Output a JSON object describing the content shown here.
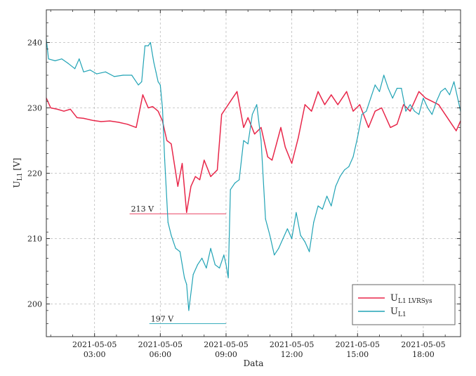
{
  "chart_data": {
    "type": "line",
    "xlabel": "Data",
    "ylabel": "U",
    "ylabel_sub": "L1",
    "ylabel_unit": "[V]",
    "xlim": [
      0.8,
      19.7
    ],
    "ylim": [
      195,
      245
    ],
    "grid": true,
    "legend_placement": "lower-right",
    "x_ticks": [
      {
        "x": 3,
        "date": "2021-05-05",
        "time": "03:00"
      },
      {
        "x": 6,
        "date": "2021-05-05",
        "time": "06:00"
      },
      {
        "x": 9,
        "date": "2021-05-05",
        "time": "09:00"
      },
      {
        "x": 12,
        "date": "2021-05-05",
        "time": "12:00"
      },
      {
        "x": 15,
        "date": "2021-05-05",
        "time": "15:00"
      },
      {
        "x": 18,
        "date": "2021-05-05",
        "time": "18:00"
      }
    ],
    "y_ticks": [
      200,
      210,
      220,
      230,
      240
    ],
    "series": [
      {
        "name": "U",
        "name_sub": "L1 LVRSys",
        "color": "#e8274a",
        "x": [
          0.8,
          1.0,
          1.3,
          1.6,
          1.9,
          2.2,
          2.5,
          2.9,
          3.3,
          3.7,
          4.1,
          4.5,
          4.9,
          5.2,
          5.45,
          5.65,
          5.9,
          6.1,
          6.3,
          6.5,
          6.8,
          7.0,
          7.2,
          7.4,
          7.6,
          7.8,
          8.0,
          8.3,
          8.6,
          8.8,
          9.0,
          9.2,
          9.5,
          9.8,
          10.0,
          10.3,
          10.6,
          10.9,
          11.1,
          11.3,
          11.5,
          11.7,
          12.0,
          12.3,
          12.6,
          12.9,
          13.2,
          13.5,
          13.8,
          14.1,
          14.5,
          14.8,
          15.1,
          15.5,
          15.8,
          16.1,
          16.5,
          16.8,
          17.1,
          17.4,
          17.8,
          18.1,
          18.4,
          18.7,
          19.0,
          19.3,
          19.5,
          19.7
        ],
        "y": [
          231.5,
          230,
          229.8,
          229.5,
          229.8,
          228.5,
          228.4,
          228.1,
          227.9,
          228.0,
          227.8,
          227.5,
          227.0,
          232.0,
          230.0,
          230.2,
          229.5,
          228.0,
          225.0,
          224.5,
          218.0,
          221.5,
          214.0,
          218.0,
          219.5,
          219.0,
          222.0,
          219.5,
          220.5,
          229.0,
          230.0,
          231.0,
          232.5,
          227.0,
          228.5,
          226.0,
          227.0,
          222.5,
          222.0,
          224.5,
          227.0,
          224.0,
          221.5,
          225.5,
          230.5,
          229.5,
          232.5,
          230.5,
          232.0,
          230.5,
          232.5,
          229.5,
          230.5,
          227.0,
          229.5,
          230.0,
          227.0,
          227.5,
          230.5,
          229.5,
          232.5,
          231.5,
          231.0,
          230.5,
          229.0,
          227.5,
          226.5,
          228.0
        ]
      },
      {
        "name": "U",
        "name_sub": "L1",
        "color": "#21a3b5",
        "x": [
          0.8,
          0.9,
          1.2,
          1.5,
          1.8,
          2.1,
          2.3,
          2.5,
          2.8,
          3.1,
          3.5,
          3.9,
          4.3,
          4.7,
          5.0,
          5.15,
          5.3,
          5.45,
          5.55,
          5.7,
          5.8,
          5.9,
          6.0,
          6.1,
          6.2,
          6.35,
          6.5,
          6.7,
          6.9,
          7.1,
          7.2,
          7.3,
          7.5,
          7.7,
          7.9,
          8.1,
          8.3,
          8.5,
          8.7,
          8.9,
          9.0,
          9.1,
          9.2,
          9.4,
          9.6,
          9.8,
          10.0,
          10.2,
          10.4,
          10.6,
          10.8,
          11.0,
          11.2,
          11.4,
          11.6,
          11.8,
          12.0,
          12.2,
          12.4,
          12.6,
          12.8,
          13.0,
          13.2,
          13.4,
          13.6,
          13.8,
          14.0,
          14.2,
          14.4,
          14.6,
          14.8,
          15.0,
          15.2,
          15.4,
          15.6,
          15.8,
          16.0,
          16.2,
          16.4,
          16.6,
          16.8,
          17.0,
          17.2,
          17.4,
          17.6,
          17.8,
          18.0,
          18.2,
          18.4,
          18.6,
          18.8,
          19.0,
          19.2,
          19.4,
          19.6,
          19.7
        ],
        "y": [
          240.5,
          237.5,
          237.2,
          237.5,
          236.8,
          236.0,
          237.5,
          235.5,
          235.8,
          235.2,
          235.5,
          234.8,
          235.0,
          235.0,
          233.5,
          234.0,
          239.5,
          239.5,
          240.0,
          237.0,
          235.5,
          234.0,
          233.5,
          230.0,
          222.0,
          212.5,
          210.5,
          208.5,
          208.0,
          204.0,
          203.0,
          199.0,
          204.5,
          206.0,
          207.0,
          205.5,
          208.5,
          206.0,
          205.5,
          207.5,
          206.0,
          204.0,
          217.5,
          218.5,
          219.0,
          225.0,
          224.5,
          229.0,
          230.5,
          225.0,
          213.0,
          210.5,
          207.5,
          208.5,
          210.0,
          211.5,
          210.0,
          214.0,
          210.5,
          209.5,
          208.0,
          212.5,
          215.0,
          214.5,
          216.5,
          215.0,
          218.0,
          219.5,
          220.5,
          221.0,
          222.5,
          225.5,
          229.0,
          229.5,
          231.5,
          233.5,
          232.5,
          235.0,
          233.0,
          231.5,
          233.0,
          233.0,
          229.5,
          230.5,
          229.5,
          229.0,
          231.5,
          230.0,
          229.0,
          231.0,
          232.5,
          233.0,
          232.0,
          234.0,
          231.0,
          229.5
        ]
      }
    ],
    "annotations": [
      {
        "label": "213 V",
        "y": 213.8,
        "x_start": 4.6,
        "x_end": 9.0,
        "color": "#e8274a"
      },
      {
        "label": "197 V",
        "y": 197,
        "x_start": 5.5,
        "x_end": 9.0,
        "color": "#21a3b5"
      }
    ]
  }
}
